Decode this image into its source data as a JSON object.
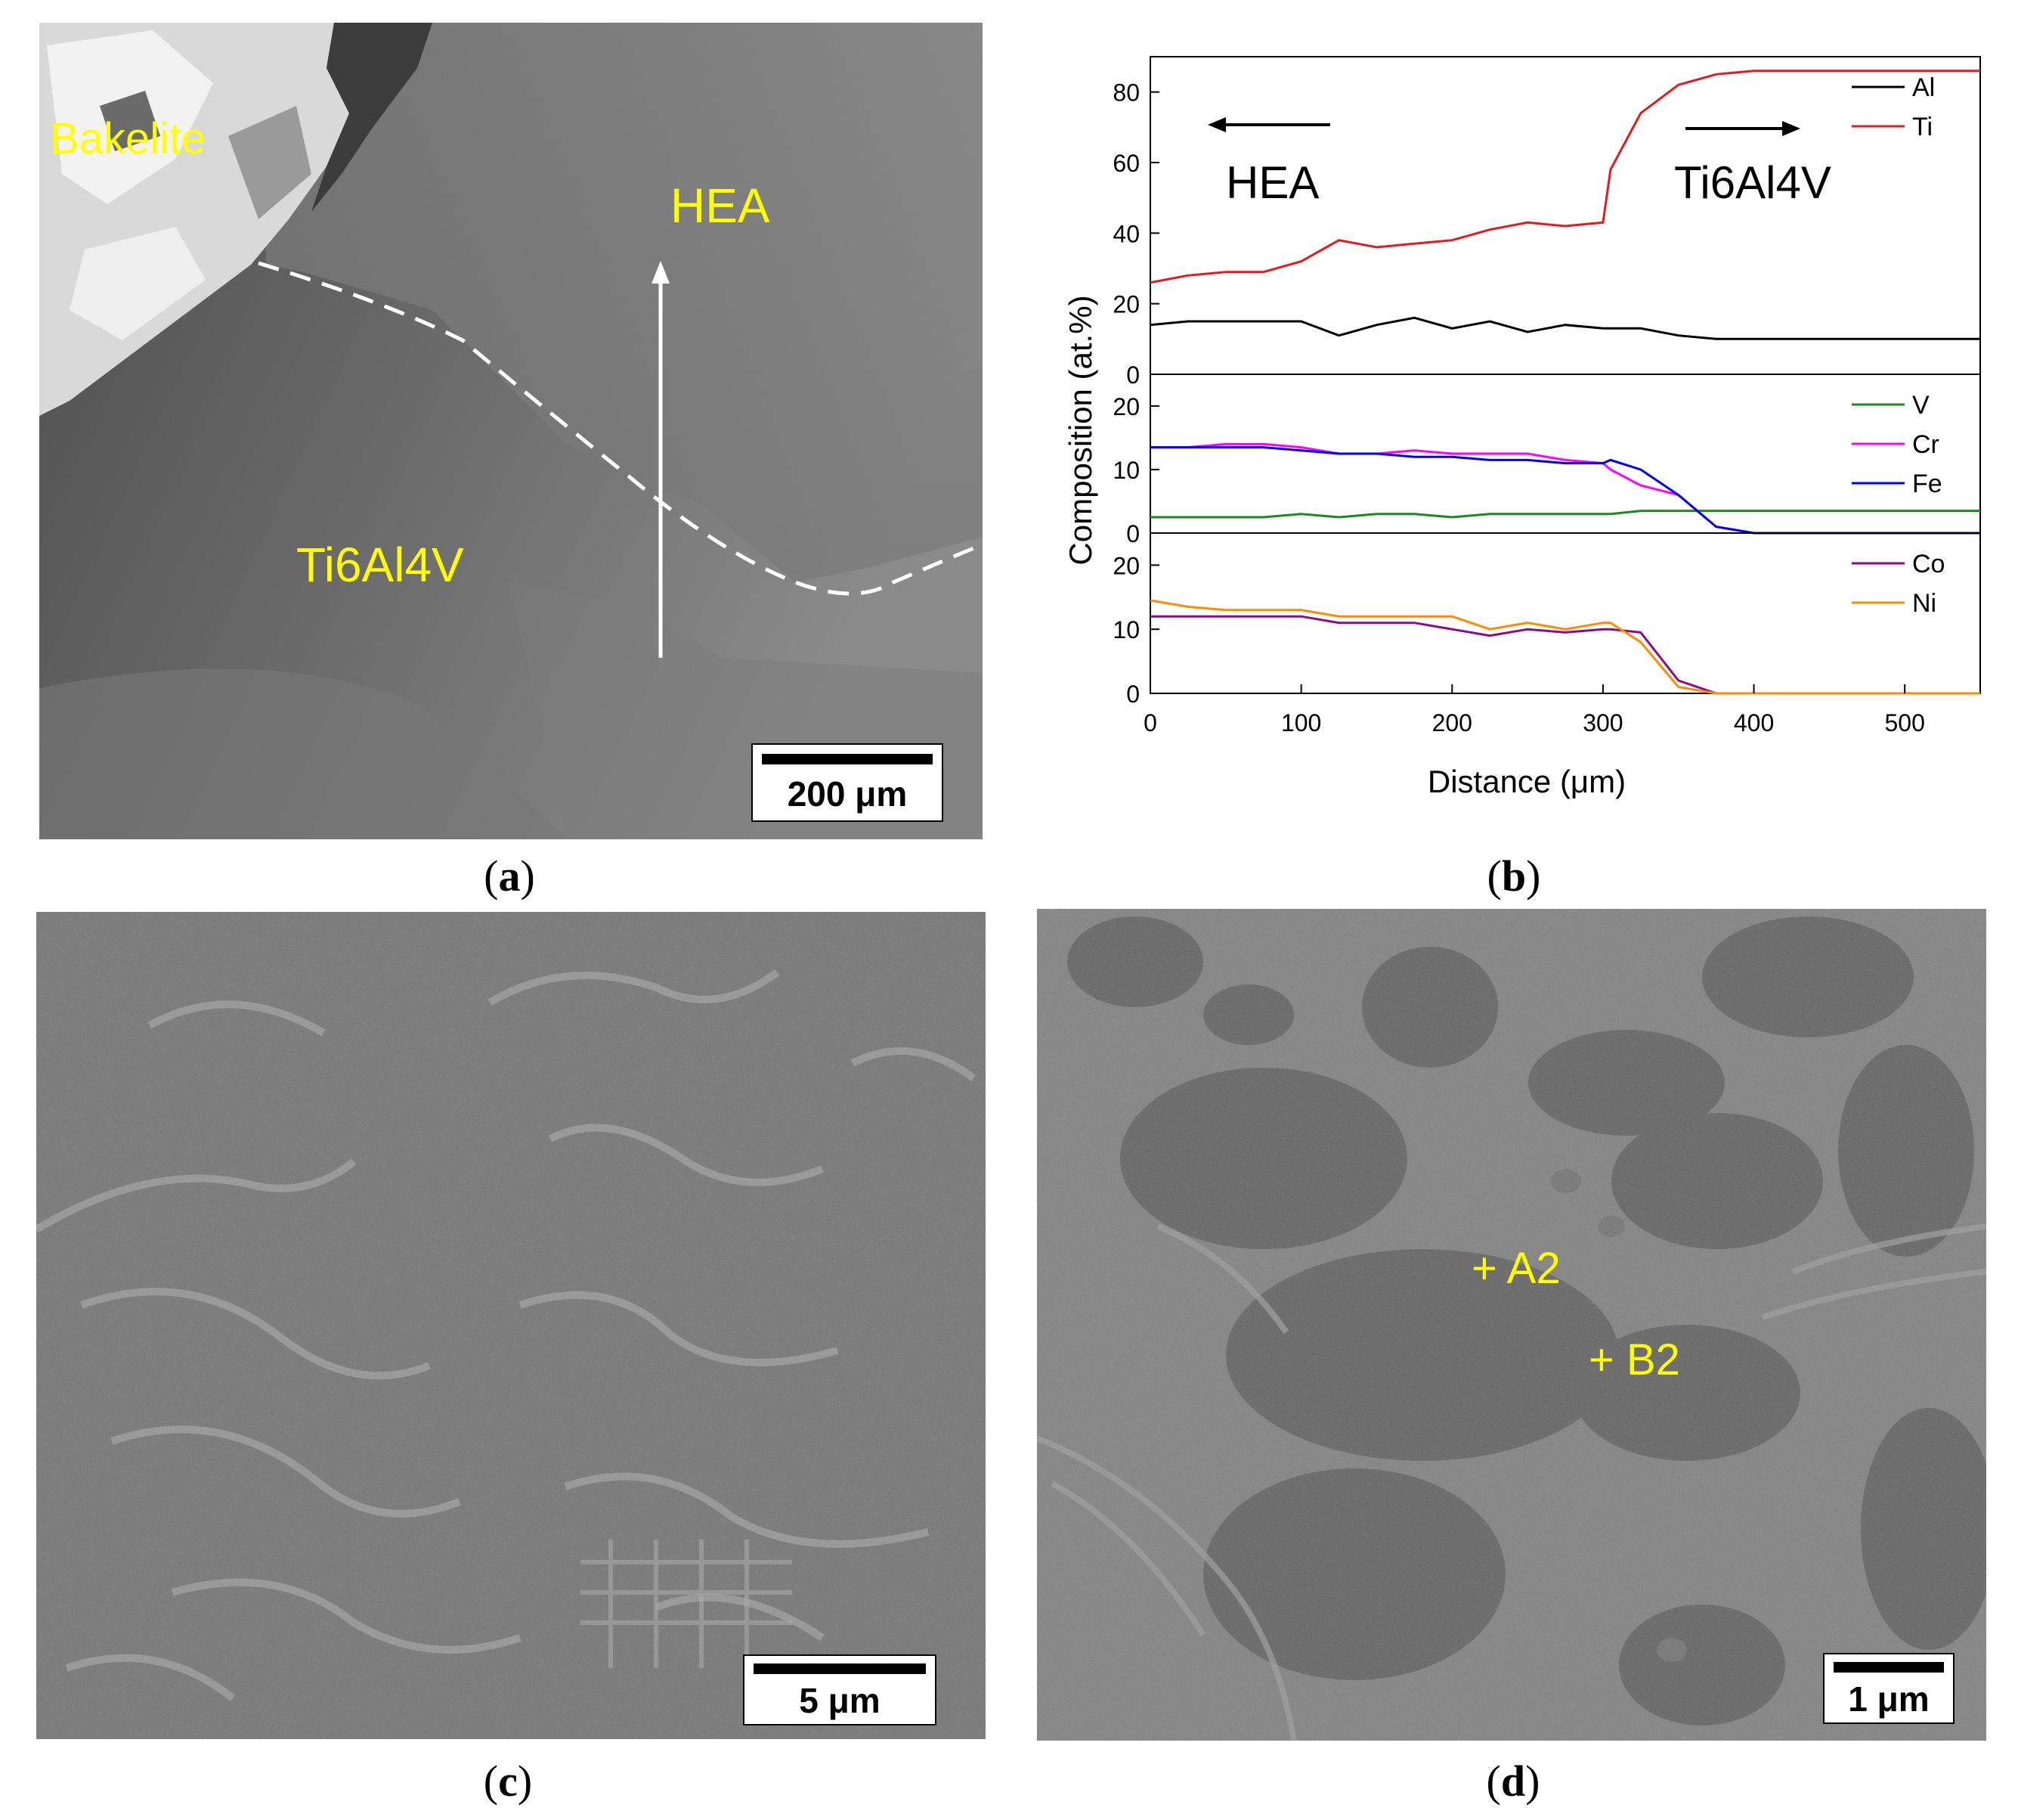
{
  "panel_a": {
    "labels": {
      "bakelite": "Bakelite",
      "hea": "HEA",
      "ti6al4v": "Ti6Al4V"
    },
    "scale_bar": "200 μm",
    "caption_letter": "a"
  },
  "panel_b": {
    "left_text": "HEA",
    "right_text": "Ti6Al4V",
    "caption_letter": "b"
  },
  "panel_c": {
    "scale_bar": "5 μm",
    "caption_letter": "c"
  },
  "panel_d": {
    "points": [
      {
        "label": "+ A2"
      },
      {
        "label": "+ B2"
      }
    ],
    "scale_bar": "1 μm",
    "caption_letter": "d"
  },
  "colors": {
    "Al": "#000000",
    "Ti": "#e41a1c",
    "V": "#1a8a1a",
    "Cr": "#ff00ff",
    "Fe": "#0000ff",
    "Co": "#8b0a8b",
    "Ni": "#ff8c00",
    "overlay_text": "#ffff00"
  },
  "chart_data": {
    "type": "line",
    "xlabel": "Distance (μm)",
    "ylabel": "Composition (at.%)",
    "xlim": [
      0,
      550
    ],
    "xticks": [
      0,
      100,
      200,
      300,
      400,
      500
    ],
    "x": [
      0,
      25,
      50,
      75,
      100,
      125,
      150,
      175,
      200,
      225,
      250,
      275,
      300,
      305,
      325,
      350,
      375,
      400,
      425,
      450,
      475,
      500,
      525,
      550
    ],
    "subplots": [
      {
        "ylim": [
          0,
          90
        ],
        "yticks": [
          0,
          20,
          40,
          60,
          80
        ],
        "series": [
          {
            "name": "Al",
            "values": [
              14,
              15,
              15,
              15,
              15,
              11,
              14,
              16,
              13,
              15,
              12,
              14,
              13,
              13,
              13,
              11,
              10,
              10,
              10,
              10,
              10,
              10,
              10,
              10
            ]
          },
          {
            "name": "Ti",
            "values": [
              26,
              28,
              29,
              29,
              32,
              38,
              36,
              37,
              38,
              41,
              43,
              42,
              43,
              58,
              74,
              82,
              85,
              86,
              86,
              86,
              86,
              86,
              86,
              86
            ]
          }
        ]
      },
      {
        "ylim": [
          0,
          25
        ],
        "yticks": [
          0,
          10,
          20
        ],
        "series": [
          {
            "name": "V",
            "values": [
              2.5,
              2.5,
              2.5,
              2.5,
              3,
              2.5,
              3,
              3,
              2.5,
              3,
              3,
              3,
              3,
              3,
              3.5,
              3.5,
              3.5,
              3.5,
              3.5,
              3.5,
              3.5,
              3.5,
              3.5,
              3.5
            ]
          },
          {
            "name": "Cr",
            "values": [
              13.5,
              13.5,
              14,
              14,
              13.5,
              12.5,
              12.5,
              13,
              12.5,
              12.5,
              12.5,
              11.5,
              11,
              10,
              7.5,
              6,
              1,
              0,
              0,
              0,
              0,
              0,
              0,
              0
            ]
          },
          {
            "name": "Fe",
            "values": [
              13.5,
              13.5,
              13.5,
              13.5,
              13,
              12.5,
              12.5,
              12,
              12,
              11.5,
              11.5,
              11,
              11,
              11.5,
              10,
              6,
              1,
              0,
              0,
              0,
              0,
              0,
              0,
              0
            ]
          }
        ]
      },
      {
        "ylim": [
          0,
          25
        ],
        "yticks": [
          0,
          10,
          20
        ],
        "series": [
          {
            "name": "Co",
            "values": [
              12,
              12,
              12,
              12,
              12,
              11,
              11,
              11,
              10,
              9,
              10,
              9.5,
              10,
              10,
              9.5,
              2,
              0,
              0,
              0,
              0,
              0,
              0,
              0,
              0
            ]
          },
          {
            "name": "Ni",
            "values": [
              14.5,
              13.5,
              13,
              13,
              13,
              12,
              12,
              12,
              12,
              10,
              11,
              10,
              11,
              11,
              8,
              1,
              0,
              0,
              0,
              0,
              0,
              0,
              0,
              0
            ]
          }
        ]
      }
    ]
  }
}
